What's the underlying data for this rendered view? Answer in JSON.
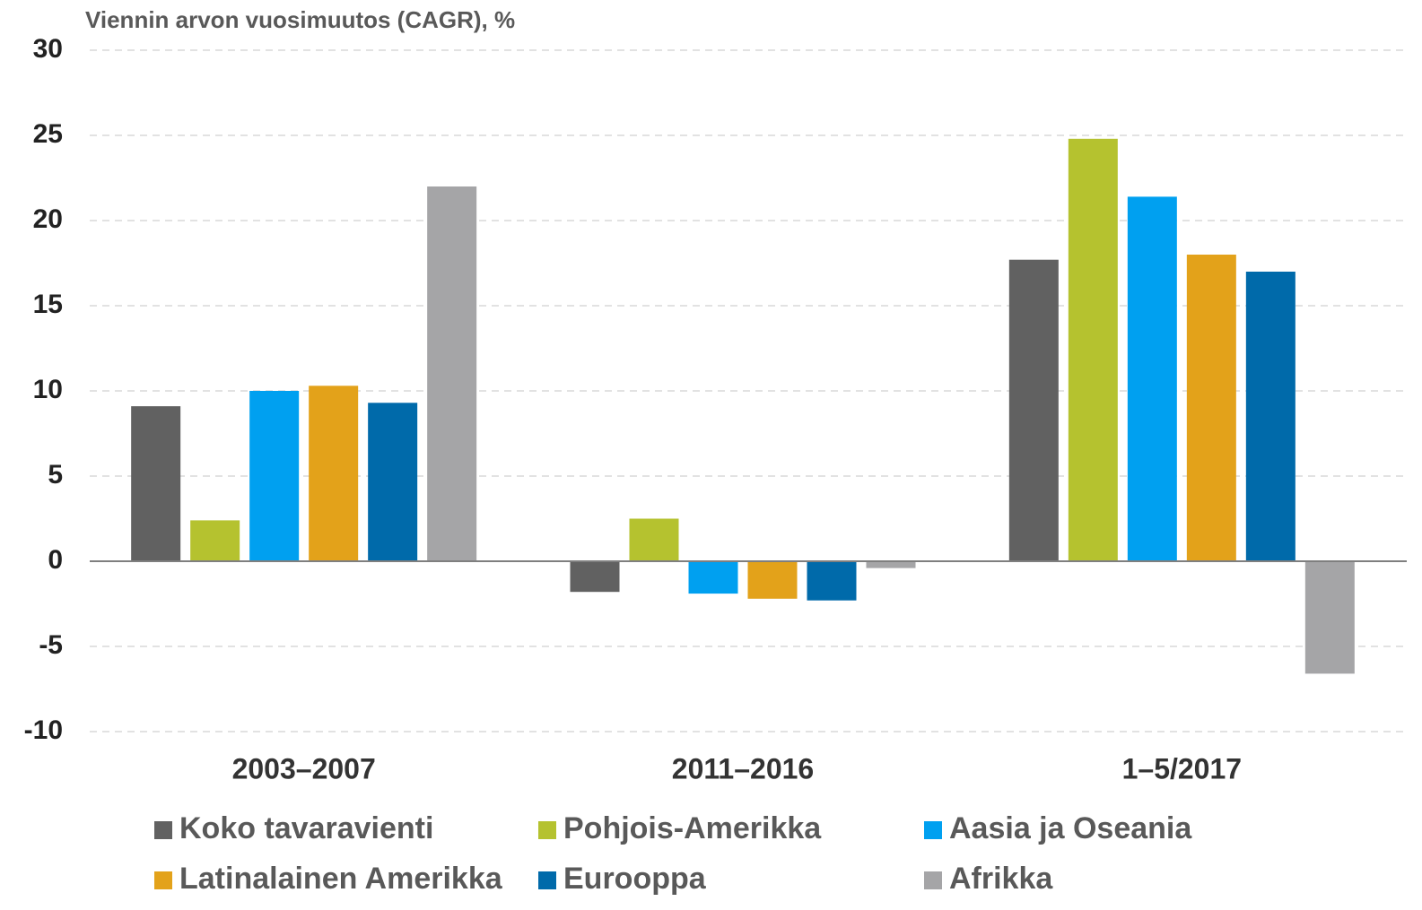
{
  "chart_data": {
    "type": "bar",
    "title": "Viennin arvon vuosimuutos (CAGR), %",
    "categories": [
      "2003–2007",
      "2011–2016",
      "1–5/2017"
    ],
    "series": [
      {
        "name": "Koko tavaravienti",
        "color": "#616161",
        "values": [
          9.1,
          -1.8,
          17.7
        ]
      },
      {
        "name": "Pohjois-Amerikka",
        "color": "#b5c22f",
        "values": [
          2.4,
          2.5,
          24.8
        ]
      },
      {
        "name": "Aasia ja Oseania",
        "color": "#00a0f0",
        "values": [
          10.0,
          -1.9,
          21.4
        ]
      },
      {
        "name": "Latinalainen Amerikka",
        "color": "#e3a21a",
        "values": [
          10.3,
          -2.2,
          18.0
        ]
      },
      {
        "name": "Eurooppa",
        "color": "#006aaa",
        "values": [
          9.3,
          -2.3,
          17.0
        ]
      },
      {
        "name": "Afrikka",
        "color": "#a5a5a7",
        "values": [
          22.0,
          -0.4,
          -6.6
        ]
      }
    ],
    "ylim": [
      -10,
      30
    ],
    "yticks": [
      -10,
      -5,
      0,
      5,
      10,
      15,
      20,
      25,
      30
    ],
    "grid": true
  }
}
